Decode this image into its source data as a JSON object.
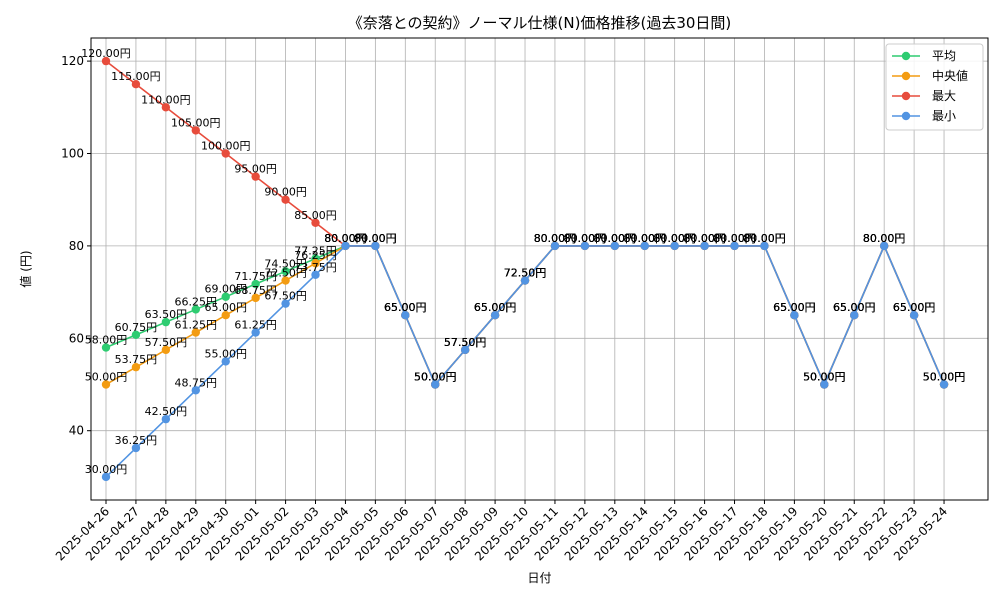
{
  "chart_data": {
    "type": "line",
    "title": "《奈落との契約》ノーマル仕様(N)価格推移(過去30日間)",
    "xlabel": "日付",
    "ylabel": "値 (円)",
    "ylim": [
      25,
      125
    ],
    "yticks": [
      40,
      60,
      80,
      100,
      120
    ],
    "grid": true,
    "legend_position": "top-right",
    "value_suffix": "円",
    "categories": [
      "2025-04-26",
      "2025-04-27",
      "2025-04-28",
      "2025-04-29",
      "2025-04-30",
      "2025-05-01",
      "2025-05-02",
      "2025-05-03",
      "2025-05-04",
      "2025-05-05",
      "2025-05-06",
      "2025-05-07",
      "2025-05-08",
      "2025-05-09",
      "2025-05-10",
      "2025-05-11",
      "2025-05-12",
      "2025-05-13",
      "2025-05-14",
      "2025-05-15",
      "2025-05-16",
      "2025-05-17",
      "2025-05-18",
      "2025-05-19",
      "2025-05-20",
      "2025-05-21",
      "2025-05-22",
      "2025-05-23",
      "2025-05-24"
    ],
    "series": [
      {
        "name": "平均",
        "color": "#2ecc71",
        "values": [
          58.0,
          60.75,
          63.5,
          66.25,
          69.0,
          71.75,
          74.5,
          77.25,
          80.0,
          80.0,
          65.0,
          50.0,
          57.5,
          65.0,
          72.5,
          80.0,
          80.0,
          80.0,
          80.0,
          80.0,
          80.0,
          80.0,
          80.0,
          65.0,
          50.0,
          65.0,
          80.0,
          65.0,
          50.0
        ]
      },
      {
        "name": "中央値",
        "color": "#f39c12",
        "values": [
          50.0,
          53.75,
          57.5,
          61.25,
          65.0,
          68.75,
          72.5,
          76.25,
          80.0,
          80.0,
          65.0,
          50.0,
          57.5,
          65.0,
          72.5,
          80.0,
          80.0,
          80.0,
          80.0,
          80.0,
          80.0,
          80.0,
          80.0,
          65.0,
          50.0,
          65.0,
          80.0,
          65.0,
          50.0
        ]
      },
      {
        "name": "最大",
        "color": "#e74c3c",
        "values": [
          120.0,
          115.0,
          110.0,
          105.0,
          100.0,
          95.0,
          90.0,
          85.0,
          80.0,
          80.0,
          65.0,
          50.0,
          57.5,
          65.0,
          72.5,
          80.0,
          80.0,
          80.0,
          80.0,
          80.0,
          80.0,
          80.0,
          80.0,
          65.0,
          50.0,
          65.0,
          80.0,
          65.0,
          50.0
        ]
      },
      {
        "name": "最小",
        "color": "#5294e2",
        "values": [
          30.0,
          36.25,
          42.5,
          48.75,
          55.0,
          61.25,
          67.5,
          73.75,
          80.0,
          80.0,
          65.0,
          50.0,
          57.5,
          65.0,
          72.5,
          80.0,
          80.0,
          80.0,
          80.0,
          80.0,
          80.0,
          80.0,
          80.0,
          65.0,
          50.0,
          65.0,
          80.0,
          65.0,
          50.0
        ]
      }
    ]
  }
}
